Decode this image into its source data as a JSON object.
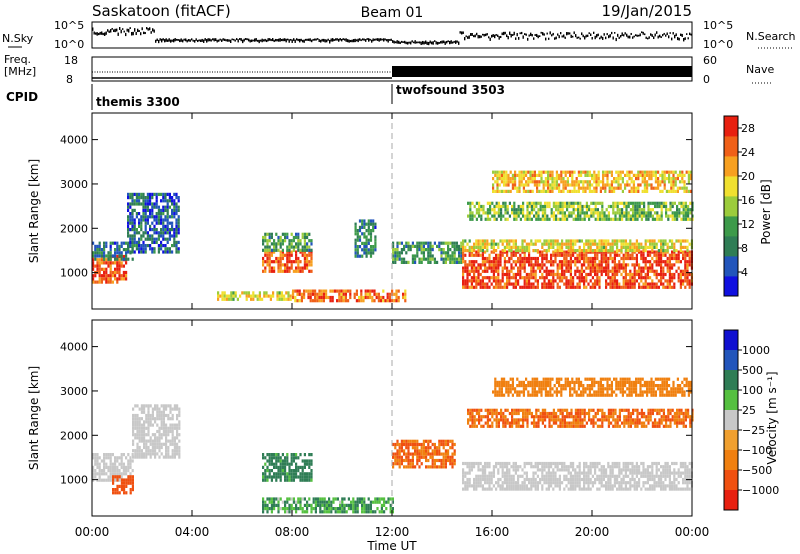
{
  "header": {
    "station": "Saskatoon (fitACF)",
    "beam": "Beam 01",
    "date": "19/Jan/2015"
  },
  "noise_panel": {
    "left_label": "N.Sky",
    "right_label": "N.Search",
    "left_ticks": [
      "10^5",
      "10^0"
    ],
    "right_ticks": [
      "10^5",
      "10^0"
    ]
  },
  "freq_panel": {
    "left_label_1": "Freq.",
    "left_label_2": "[MHz]",
    "right_label": "Nave",
    "left_ticks": [
      "18",
      "8"
    ],
    "right_ticks": [
      "60",
      "0"
    ]
  },
  "cpid_panel": {
    "label": "CPID",
    "modes": [
      {
        "name": "themis 3300",
        "start_hour": 0
      },
      {
        "name": "twofsound 3503",
        "start_hour": 12
      }
    ]
  },
  "colors": {
    "power_scale": [
      "#1010e0",
      "#2255bb",
      "#2f7d55",
      "#3d9a4a",
      "#9ccc3c",
      "#f0e030",
      "#f7a020",
      "#f06018",
      "#e82010"
    ],
    "velocity_scale": [
      "#1010d0",
      "#2255bb",
      "#2f7d55",
      "#55c040",
      "#c8c8c8",
      "#f0a030",
      "#f08010",
      "#f05010",
      "#e82010"
    ]
  },
  "chart_data": [
    {
      "type": "heatmap",
      "name": "power",
      "xlabel": "Time UT",
      "ylabel": "Slant Range [km]",
      "xlim": [
        0,
        24
      ],
      "ylim": [
        180,
        4600
      ],
      "x_ticks": [
        "00:00",
        "04:00",
        "08:00",
        "12:00",
        "16:00",
        "20:00",
        "00:00"
      ],
      "y_ticks": [
        1000,
        2000,
        3000,
        4000
      ],
      "colorbar_label": "Power [dB]",
      "colorbar_ticks": [
        "4",
        "8",
        "12",
        "16",
        "20",
        "24",
        "28"
      ],
      "colorbar_range": [
        0,
        30
      ],
      "regions": [
        {
          "t0": 0.0,
          "t1": 1.4,
          "r0": 800,
          "r1": 1400,
          "value": 26
        },
        {
          "t0": 0.0,
          "t1": 1.6,
          "r0": 1300,
          "r1": 1700,
          "value": 8
        },
        {
          "t0": 1.4,
          "t1": 3.5,
          "r0": 1500,
          "r1": 2800,
          "value": 6
        },
        {
          "t0": 6.8,
          "t1": 8.8,
          "r0": 1000,
          "r1": 1500,
          "value": 25
        },
        {
          "t0": 6.8,
          "t1": 8.8,
          "r0": 1500,
          "r1": 1900,
          "value": 11
        },
        {
          "t0": 5.0,
          "t1": 8.0,
          "r0": 420,
          "r1": 580,
          "value": 18
        },
        {
          "t0": 8.0,
          "t1": 12.5,
          "r0": 380,
          "r1": 620,
          "value": 24
        },
        {
          "t0": 10.5,
          "t1": 11.3,
          "r0": 1400,
          "r1": 2200,
          "value": 8
        },
        {
          "t0": 12.0,
          "t1": 14.8,
          "r0": 1200,
          "r1": 1700,
          "value": 10
        },
        {
          "t0": 14.8,
          "t1": 24.0,
          "r0": 700,
          "r1": 1500,
          "value": 27
        },
        {
          "t0": 14.8,
          "t1": 24.0,
          "r0": 1500,
          "r1": 1750,
          "value": 18
        },
        {
          "t0": 15.0,
          "t1": 24.0,
          "r0": 2200,
          "r1": 2600,
          "value": 14
        },
        {
          "t0": 16.0,
          "t1": 24.0,
          "r0": 2800,
          "r1": 3300,
          "value": 20
        }
      ]
    },
    {
      "type": "heatmap",
      "name": "velocity",
      "xlabel": "Time UT",
      "ylabel": "Slant Range [km]",
      "xlim": [
        0,
        24
      ],
      "ylim": [
        180,
        4600
      ],
      "x_ticks": [
        "00:00",
        "04:00",
        "08:00",
        "12:00",
        "16:00",
        "20:00",
        "00:00"
      ],
      "y_ticks": [
        1000,
        2000,
        3000,
        4000
      ],
      "colorbar_label": "Velocity [m s⁻¹]",
      "colorbar_ticks": [
        "1000",
        "500",
        "100",
        "25",
        "−25",
        "−100",
        "−500",
        "−1000"
      ],
      "regions": [
        {
          "t0": 0.0,
          "t1": 1.6,
          "r0": 1000,
          "r1": 1600,
          "value": 0
        },
        {
          "t0": 0.8,
          "t1": 1.6,
          "r0": 700,
          "r1": 1100,
          "value": -500
        },
        {
          "t0": 1.6,
          "t1": 3.5,
          "r0": 1500,
          "r1": 2700,
          "value": 0
        },
        {
          "t0": 6.8,
          "t1": 8.8,
          "r0": 1000,
          "r1": 1600,
          "value": 100
        },
        {
          "t0": 6.8,
          "t1": 12.0,
          "r0": 300,
          "r1": 600,
          "value": 60
        },
        {
          "t0": 12.0,
          "t1": 14.5,
          "r0": 1300,
          "r1": 1900,
          "value": -300
        },
        {
          "t0": 14.8,
          "t1": 24.0,
          "r0": 800,
          "r1": 1400,
          "value": 0
        },
        {
          "t0": 15.0,
          "t1": 24.0,
          "r0": 2200,
          "r1": 2600,
          "value": -300
        },
        {
          "t0": 16.0,
          "t1": 24.0,
          "r0": 2900,
          "r1": 3300,
          "value": -200
        }
      ]
    }
  ]
}
